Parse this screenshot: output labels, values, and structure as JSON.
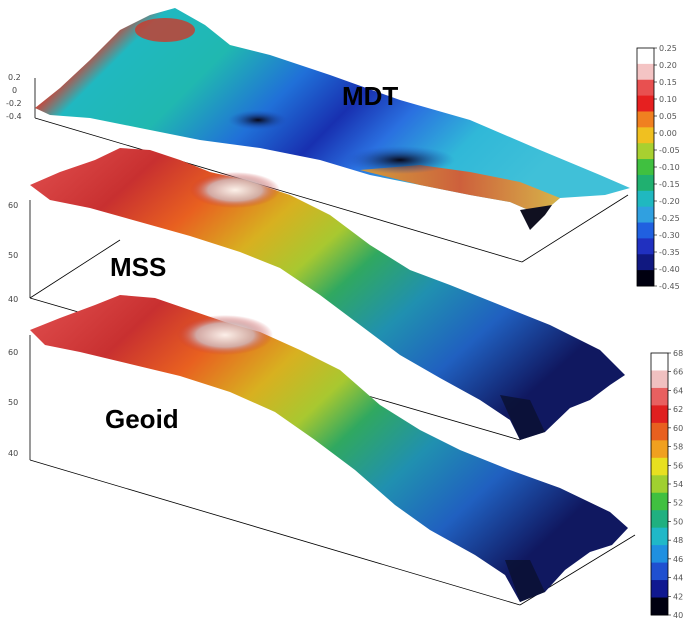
{
  "surfaces": [
    {
      "label": "MDT",
      "left_axis_ticks": [
        "0.2",
        "0",
        "-0.2",
        "-0.4"
      ]
    },
    {
      "label": "MSS",
      "left_axis_ticks": [
        "60",
        "50",
        "40"
      ]
    },
    {
      "label": "Geoid",
      "left_axis_ticks": [
        "60",
        "50",
        "40"
      ]
    }
  ],
  "colorbar_mdt": {
    "labels": [
      "0.25",
      "0.20",
      "0.15",
      "0.10",
      "0.05",
      "0.00",
      "-0.05",
      "-0.10",
      "-0.15",
      "-0.20",
      "-0.25",
      "-0.30",
      "-0.35",
      "-0.40",
      "-0.45"
    ],
    "colors": [
      "#ffffff",
      "#f4c4c4",
      "#e85050",
      "#e62020",
      "#f08020",
      "#f0c020",
      "#a8d030",
      "#40c040",
      "#20b070",
      "#20b8c0",
      "#30a0e0",
      "#2060e0",
      "#2030c0",
      "#101880",
      "#000010"
    ]
  },
  "colorbar_height": {
    "labels": [
      "68",
      "66",
      "64",
      "62",
      "60",
      "58",
      "56",
      "54",
      "52",
      "50",
      "48",
      "46",
      "44",
      "42",
      "40"
    ],
    "colors": [
      "#ffffff",
      "#f0c0c0",
      "#e86060",
      "#e02020",
      "#e86020",
      "#f0a020",
      "#e8e020",
      "#a0d030",
      "#40c040",
      "#20b080",
      "#20b8c8",
      "#2090e0",
      "#2050d0",
      "#101890",
      "#000010"
    ]
  },
  "colors": {
    "box_line": "#000000",
    "background": "#ffffff"
  }
}
